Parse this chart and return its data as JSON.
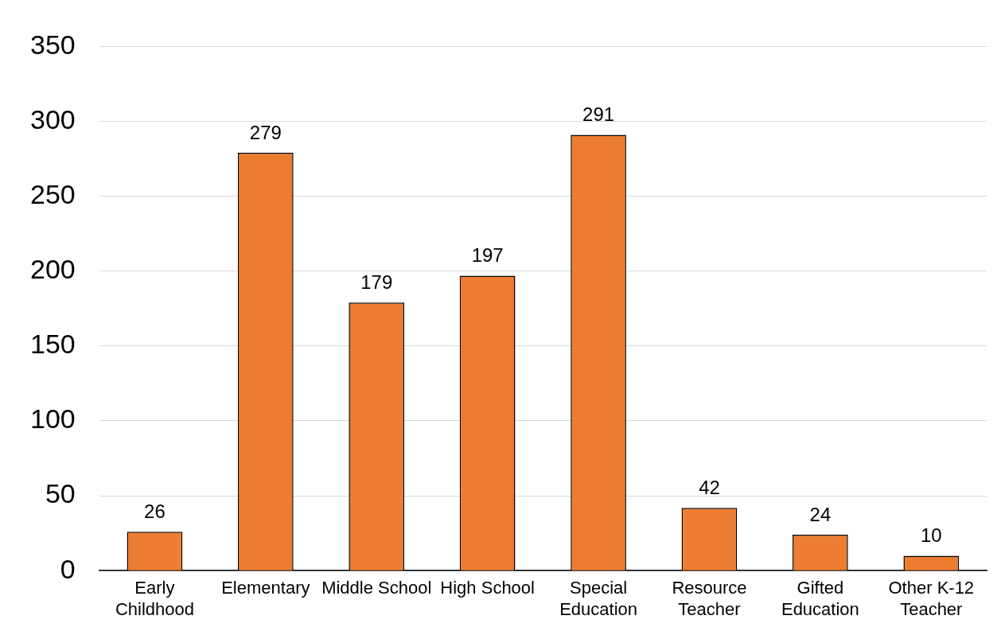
{
  "chart_data": {
    "type": "bar",
    "categories": [
      "Early Childhood",
      "Elementary",
      "Middle School",
      "High School",
      "Special Education",
      "Resource Teacher",
      "Gifted Education",
      "Other K-12 Teacher"
    ],
    "values": [
      26,
      279,
      179,
      197,
      291,
      42,
      24,
      10
    ],
    "color": "#ed7d31",
    "ylim": [
      0,
      350
    ],
    "yticks": [
      0,
      50,
      100,
      150,
      200,
      250,
      300,
      350
    ],
    "grid": "y",
    "legend": false,
    "data_labels": true
  }
}
